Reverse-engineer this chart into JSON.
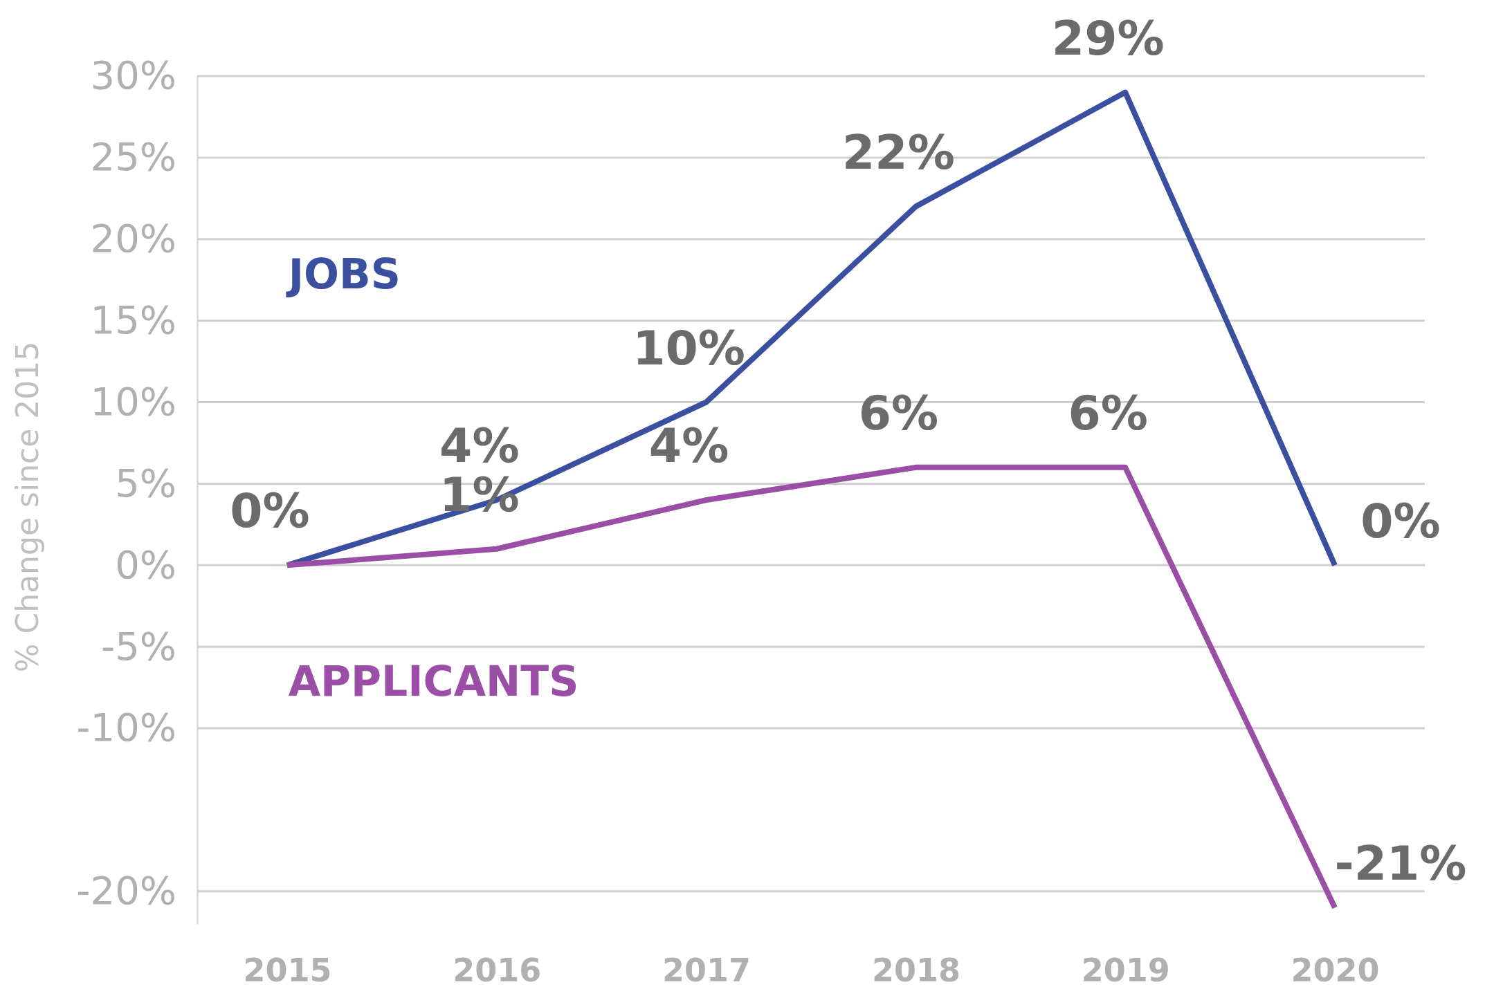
{
  "chart_data": {
    "type": "line",
    "ylabel": "% Change since 2015",
    "categories": [
      "2015",
      "2016",
      "2017",
      "2018",
      "2019",
      "2020"
    ],
    "series": [
      {
        "name": "JOBS",
        "color": "#3a4fa0",
        "values": [
          0,
          4,
          10,
          22,
          29,
          0
        ],
        "value_labels": [
          "0%",
          "4%",
          "10%",
          "22%",
          "29%",
          "0%"
        ]
      },
      {
        "name": "APPLICANTS",
        "color": "#9b4ea6",
        "values": [
          0,
          1,
          4,
          6,
          6,
          -21
        ],
        "value_labels": [
          null,
          "1%",
          "4%",
          "6%",
          "6%",
          "-21%"
        ]
      }
    ],
    "ylim": [
      -22,
      30
    ],
    "yticks": [
      {
        "value": 30,
        "label": "30%"
      },
      {
        "value": 25,
        "label": "25%"
      },
      {
        "value": 20,
        "label": "20%"
      },
      {
        "value": 15,
        "label": "15%"
      },
      {
        "value": 10,
        "label": "10%"
      },
      {
        "value": 5,
        "label": "5%"
      },
      {
        "value": 0,
        "label": "0%"
      },
      {
        "value": -5,
        "label": "-5%"
      },
      {
        "value": -10,
        "label": "-10%"
      },
      {
        "value": -20,
        "label": "-20%"
      }
    ],
    "grid": "y",
    "marker": "none",
    "line_style": "solid"
  }
}
